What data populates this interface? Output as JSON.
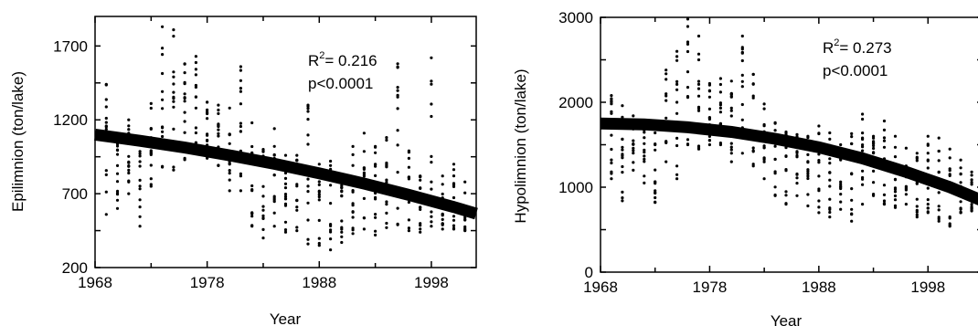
{
  "chart_data": [
    {
      "type": "scatter",
      "title": "",
      "xlabel": "Year",
      "ylabel": "Epilimnion (ton/lake)",
      "xlim": [
        1968,
        2002
      ],
      "ylim": [
        200,
        1900
      ],
      "xticks": [
        1968,
        1978,
        1988,
        1998
      ],
      "yticks": [
        200,
        700,
        1200,
        1700
      ],
      "xtick_labels": [
        "1968",
        "1978",
        "1988",
        "1998"
      ],
      "ytick_labels": [
        "200",
        "700",
        "1200",
        "1700"
      ],
      "annotations": {
        "r2_prefix": "R",
        "r2_sup": "2",
        "r2_value": "= 0.216",
        "p": "p<0.0001"
      },
      "trend_line": {
        "x": [
          1968,
          1972,
          1976,
          1980,
          1984,
          1988,
          1992,
          1996,
          2000,
          2002
        ],
        "y": [
          1100,
          1058,
          1012,
          960,
          902,
          838,
          768,
          692,
          610,
          565
        ]
      },
      "year_ranges": [
        {
          "year": 1969,
          "min": 560,
          "max": 1440
        },
        {
          "year": 1970,
          "min": 600,
          "max": 1100
        },
        {
          "year": 1971,
          "min": 700,
          "max": 1200
        },
        {
          "year": 1972,
          "min": 480,
          "max": 1060
        },
        {
          "year": 1973,
          "min": 750,
          "max": 1310
        },
        {
          "year": 1974,
          "min": 880,
          "max": 1830
        },
        {
          "year": 1975,
          "min": 860,
          "max": 1810
        },
        {
          "year": 1976,
          "min": 930,
          "max": 1580
        },
        {
          "year": 1977,
          "min": 990,
          "max": 1630
        },
        {
          "year": 1978,
          "min": 940,
          "max": 1320
        },
        {
          "year": 1979,
          "min": 890,
          "max": 1300
        },
        {
          "year": 1980,
          "min": 720,
          "max": 1280
        },
        {
          "year": 1981,
          "min": 720,
          "max": 1560
        },
        {
          "year": 1982,
          "min": 480,
          "max": 1180
        },
        {
          "year": 1983,
          "min": 400,
          "max": 1000
        },
        {
          "year": 1984,
          "min": 480,
          "max": 1140
        },
        {
          "year": 1985,
          "min": 440,
          "max": 960
        },
        {
          "year": 1986,
          "min": 450,
          "max": 960
        },
        {
          "year": 1987,
          "min": 360,
          "max": 1300
        },
        {
          "year": 1988,
          "min": 350,
          "max": 900
        },
        {
          "year": 1989,
          "min": 320,
          "max": 920
        },
        {
          "year": 1990,
          "min": 370,
          "max": 820
        },
        {
          "year": 1991,
          "min": 430,
          "max": 1020
        },
        {
          "year": 1992,
          "min": 460,
          "max": 1110
        },
        {
          "year": 1993,
          "min": 420,
          "max": 1020
        },
        {
          "year": 1994,
          "min": 470,
          "max": 1080
        },
        {
          "year": 1995,
          "min": 490,
          "max": 1580
        },
        {
          "year": 1996,
          "min": 450,
          "max": 990
        },
        {
          "year": 1997,
          "min": 440,
          "max": 820
        },
        {
          "year": 1998,
          "min": 480,
          "max": 1620
        },
        {
          "year": 1999,
          "min": 460,
          "max": 820
        },
        {
          "year": 2000,
          "min": 460,
          "max": 900
        },
        {
          "year": 2001,
          "min": 450,
          "max": 780
        }
      ]
    },
    {
      "type": "scatter",
      "title": "",
      "xlabel": "Year",
      "ylabel": "Hypolimnion (ton/lake)",
      "xlim": [
        1968,
        2003
      ],
      "ylim": [
        0,
        3000
      ],
      "xticks": [
        1968,
        1978,
        1988,
        1998
      ],
      "yticks": [
        0,
        1000,
        2000,
        3000
      ],
      "xtick_labels": [
        "1968",
        "1978",
        "1988",
        "1998"
      ],
      "ytick_labels": [
        "0",
        "1000",
        "2000",
        "3000"
      ],
      "annotations": {
        "r2_prefix": "R",
        "r2_sup": "2",
        "r2_value": "= 0.273",
        "p": "p<0.0001"
      },
      "trend_line": {
        "x": [
          1968,
          1972,
          1976,
          1980,
          1984,
          1988,
          1992,
          1996,
          2000,
          2003
        ],
        "y": [
          1750,
          1740,
          1705,
          1650,
          1570,
          1470,
          1340,
          1180,
          1000,
          840
        ]
      },
      "year_ranges": [
        {
          "year": 1969,
          "min": 1100,
          "max": 2080
        },
        {
          "year": 1970,
          "min": 840,
          "max": 1960
        },
        {
          "year": 1971,
          "min": 1200,
          "max": 1840
        },
        {
          "year": 1972,
          "min": 1050,
          "max": 1700
        },
        {
          "year": 1973,
          "min": 820,
          "max": 1640
        },
        {
          "year": 1974,
          "min": 1300,
          "max": 2380
        },
        {
          "year": 1975,
          "min": 1100,
          "max": 2600
        },
        {
          "year": 1976,
          "min": 1500,
          "max": 2980
        },
        {
          "year": 1977,
          "min": 1450,
          "max": 2780
        },
        {
          "year": 1978,
          "min": 1500,
          "max": 2220
        },
        {
          "year": 1979,
          "min": 1500,
          "max": 2280
        },
        {
          "year": 1980,
          "min": 1300,
          "max": 2250
        },
        {
          "year": 1981,
          "min": 1400,
          "max": 2780
        },
        {
          "year": 1982,
          "min": 1250,
          "max": 2330
        },
        {
          "year": 1983,
          "min": 1100,
          "max": 1980
        },
        {
          "year": 1984,
          "min": 900,
          "max": 1760
        },
        {
          "year": 1985,
          "min": 800,
          "max": 1650
        },
        {
          "year": 1986,
          "min": 900,
          "max": 1620
        },
        {
          "year": 1987,
          "min": 780,
          "max": 1600
        },
        {
          "year": 1988,
          "min": 700,
          "max": 1720
        },
        {
          "year": 1989,
          "min": 650,
          "max": 1640
        },
        {
          "year": 1990,
          "min": 740,
          "max": 1500
        },
        {
          "year": 1991,
          "min": 600,
          "max": 1630
        },
        {
          "year": 1992,
          "min": 800,
          "max": 1860
        },
        {
          "year": 1993,
          "min": 900,
          "max": 1600
        },
        {
          "year": 1994,
          "min": 800,
          "max": 1780
        },
        {
          "year": 1995,
          "min": 760,
          "max": 1600
        },
        {
          "year": 1996,
          "min": 800,
          "max": 1460
        },
        {
          "year": 1997,
          "min": 650,
          "max": 1400
        },
        {
          "year": 1998,
          "min": 700,
          "max": 1600
        },
        {
          "year": 1999,
          "min": 600,
          "max": 1580
        },
        {
          "year": 2000,
          "min": 540,
          "max": 1450
        },
        {
          "year": 2001,
          "min": 700,
          "max": 1320
        },
        {
          "year": 2002,
          "min": 720,
          "max": 1180
        }
      ]
    }
  ]
}
